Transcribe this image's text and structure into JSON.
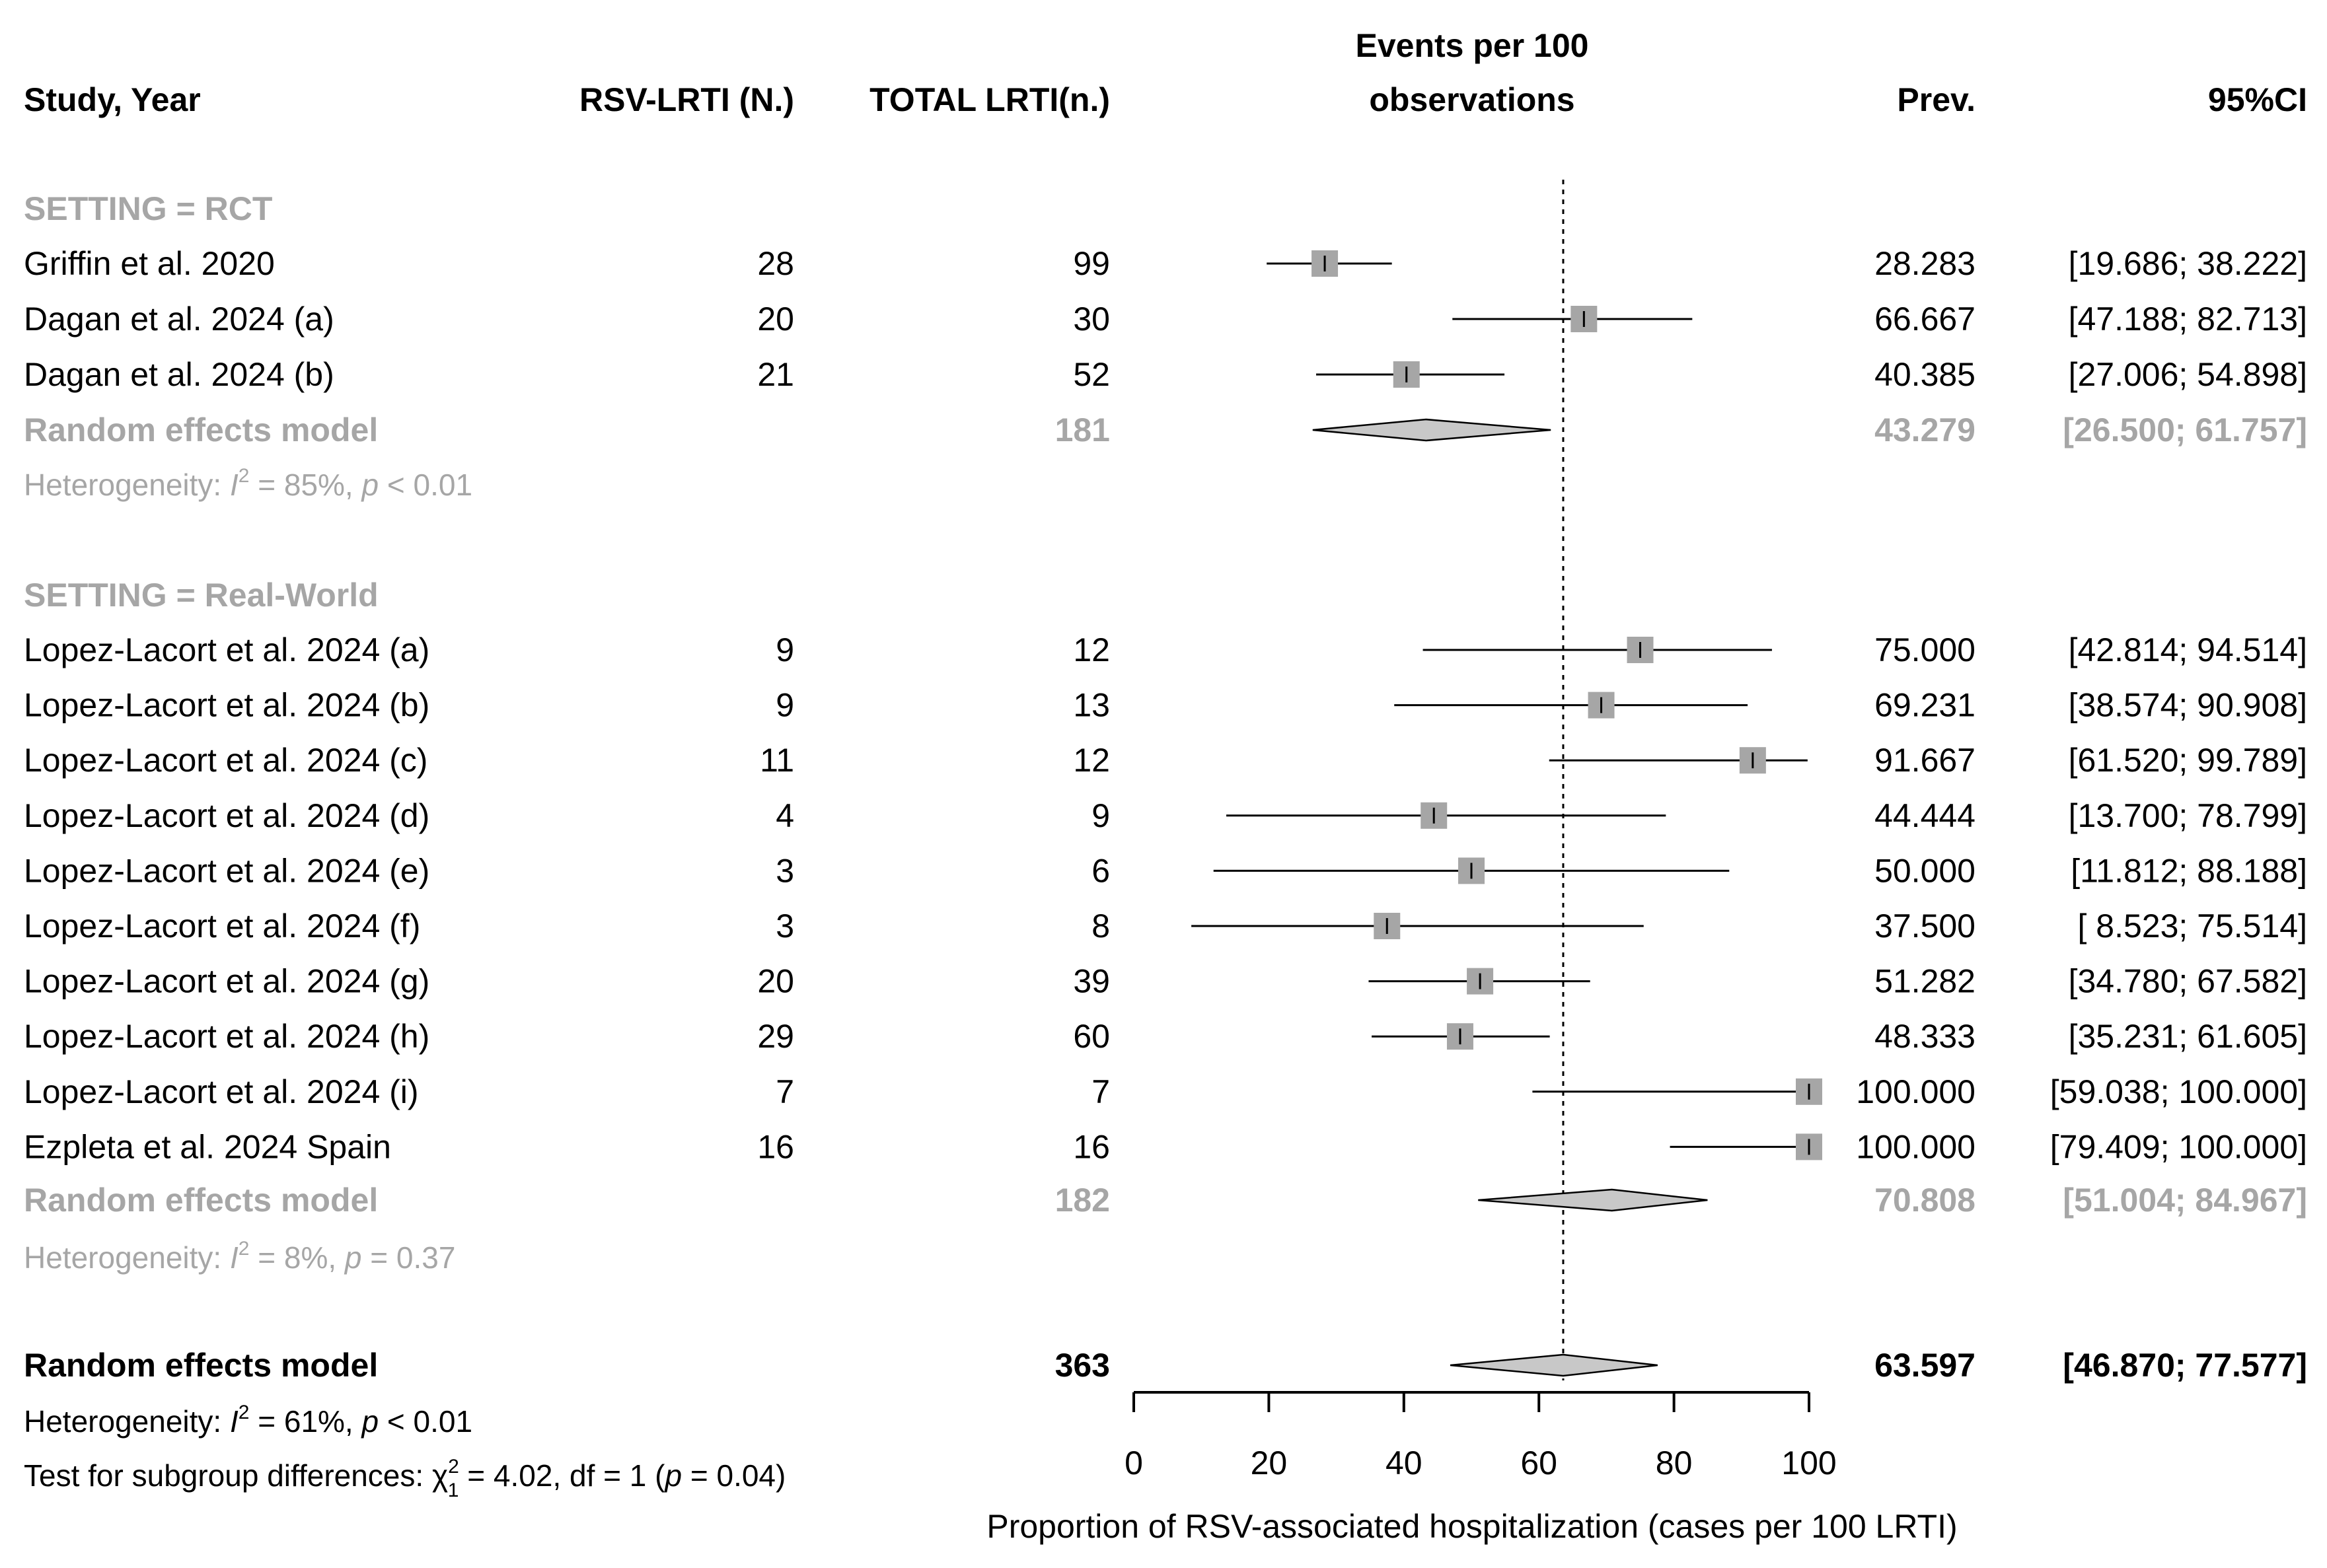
{
  "chart_data": {
    "type": "forest",
    "headers": {
      "study": "Study, Year",
      "events": "RSV-LRTI (N.)",
      "total": "TOTAL LRTI(n.)",
      "plot_title_line1": "Events per 100",
      "plot_title_line2": "observations",
      "prev": "Prev.",
      "ci": "95%CI"
    },
    "xlabel": "Proportion of RSV-associated hospitalization (cases per 100 LRTI)",
    "xlim": [
      0,
      100
    ],
    "ticks": [
      "0",
      "20",
      "40",
      "60",
      "80",
      "100"
    ],
    "reference_line": 63.597,
    "groups": [
      {
        "label": "SETTING = RCT",
        "studies": [
          {
            "name": "Griffin et al. 2020",
            "events": "28",
            "total": "99",
            "prev": "28.283",
            "ci_text": "[19.686;  38.222]",
            "est": 28.283,
            "lo": 19.686,
            "hi": 38.222
          },
          {
            "name": "Dagan et al. 2024 (a)",
            "events": "20",
            "total": "30",
            "prev": "66.667",
            "ci_text": "[47.188;  82.713]",
            "est": 66.667,
            "lo": 47.188,
            "hi": 82.713
          },
          {
            "name": "Dagan et al. 2024 (b)",
            "events": "21",
            "total": "52",
            "prev": "40.385",
            "ci_text": "[27.006;  54.898]",
            "est": 40.385,
            "lo": 27.006,
            "hi": 54.898
          }
        ],
        "summary": {
          "label": "Random effects model",
          "total": "181",
          "prev": "43.279",
          "ci_text": "[26.500;  61.757]",
          "est": 43.279,
          "lo": 26.5,
          "hi": 61.757
        },
        "heterogeneity": {
          "prefix": "Heterogeneity: ",
          "i2_value": " = 85%, ",
          "p_text": " < 0.01"
        }
      },
      {
        "label": "SETTING = Real-World",
        "studies": [
          {
            "name": "Lopez-Lacort et al. 2024 (a)",
            "events": "9",
            "total": "12",
            "prev": "75.000",
            "ci_text": "[42.814;  94.514]",
            "est": 75.0,
            "lo": 42.814,
            "hi": 94.514
          },
          {
            "name": "Lopez-Lacort et al. 2024 (b)",
            "events": "9",
            "total": "13",
            "prev": "69.231",
            "ci_text": "[38.574;  90.908]",
            "est": 69.231,
            "lo": 38.574,
            "hi": 90.908
          },
          {
            "name": "Lopez-Lacort et al. 2024 (c)",
            "events": "11",
            "total": "12",
            "prev": "91.667",
            "ci_text": "[61.520;  99.789]",
            "est": 91.667,
            "lo": 61.52,
            "hi": 99.789
          },
          {
            "name": "Lopez-Lacort et al. 2024 (d)",
            "events": "4",
            "total": "9",
            "prev": "44.444",
            "ci_text": "[13.700;  78.799]",
            "est": 44.444,
            "lo": 13.7,
            "hi": 78.799
          },
          {
            "name": "Lopez-Lacort et al. 2024 (e)",
            "events": "3",
            "total": "6",
            "prev": "50.000",
            "ci_text": "[11.812;  88.188]",
            "est": 50.0,
            "lo": 11.812,
            "hi": 88.188
          },
          {
            "name": "Lopez-Lacort et al. 2024 (f)",
            "events": "3",
            "total": "8",
            "prev": "37.500",
            "ci_text": "[ 8.523;  75.514]",
            "est": 37.5,
            "lo": 8.523,
            "hi": 75.514
          },
          {
            "name": "Lopez-Lacort et al. 2024 (g)",
            "events": "20",
            "total": "39",
            "prev": "51.282",
            "ci_text": "[34.780;  67.582]",
            "est": 51.282,
            "lo": 34.78,
            "hi": 67.582
          },
          {
            "name": "Lopez-Lacort et al. 2024 (h)",
            "events": "29",
            "total": "60",
            "prev": "48.333",
            "ci_text": "[35.231;  61.605]",
            "est": 48.333,
            "lo": 35.231,
            "hi": 61.605
          },
          {
            "name": "Lopez-Lacort et al. 2024 (i)",
            "events": "7",
            "total": "7",
            "prev": "100.000",
            "ci_text": "[59.038; 100.000]",
            "est": 100.0,
            "lo": 59.038,
            "hi": 100.0
          },
          {
            "name": "Ezpleta et al. 2024 Spain",
            "events": "16",
            "total": "16",
            "prev": "100.000",
            "ci_text": "[79.409; 100.000]",
            "est": 100.0,
            "lo": 79.409,
            "hi": 100.0
          }
        ],
        "summary": {
          "label": "Random effects model",
          "total": "182",
          "prev": "70.808",
          "ci_text": "[51.004;  84.967]",
          "est": 70.808,
          "lo": 51.004,
          "hi": 84.967
        },
        "heterogeneity": {
          "prefix": "Heterogeneity: ",
          "i2_value": " = 8%, ",
          "p_text": " = 0.37"
        }
      }
    ],
    "overall": {
      "label": "Random effects model",
      "total": "363",
      "prev": "63.597",
      "ci_text": "[46.870;  77.577]",
      "est": 63.597,
      "lo": 46.87,
      "hi": 77.577,
      "heterogeneity": {
        "prefix": "Heterogeneity: ",
        "i2_value": " = 61%, ",
        "p_text": " < 0.01"
      },
      "subgroup_test": {
        "prefix": "Test for subgroup differences: ",
        "stat": " = 4.02, df = 1 (",
        "p_text": " = 0.04)"
      }
    }
  }
}
